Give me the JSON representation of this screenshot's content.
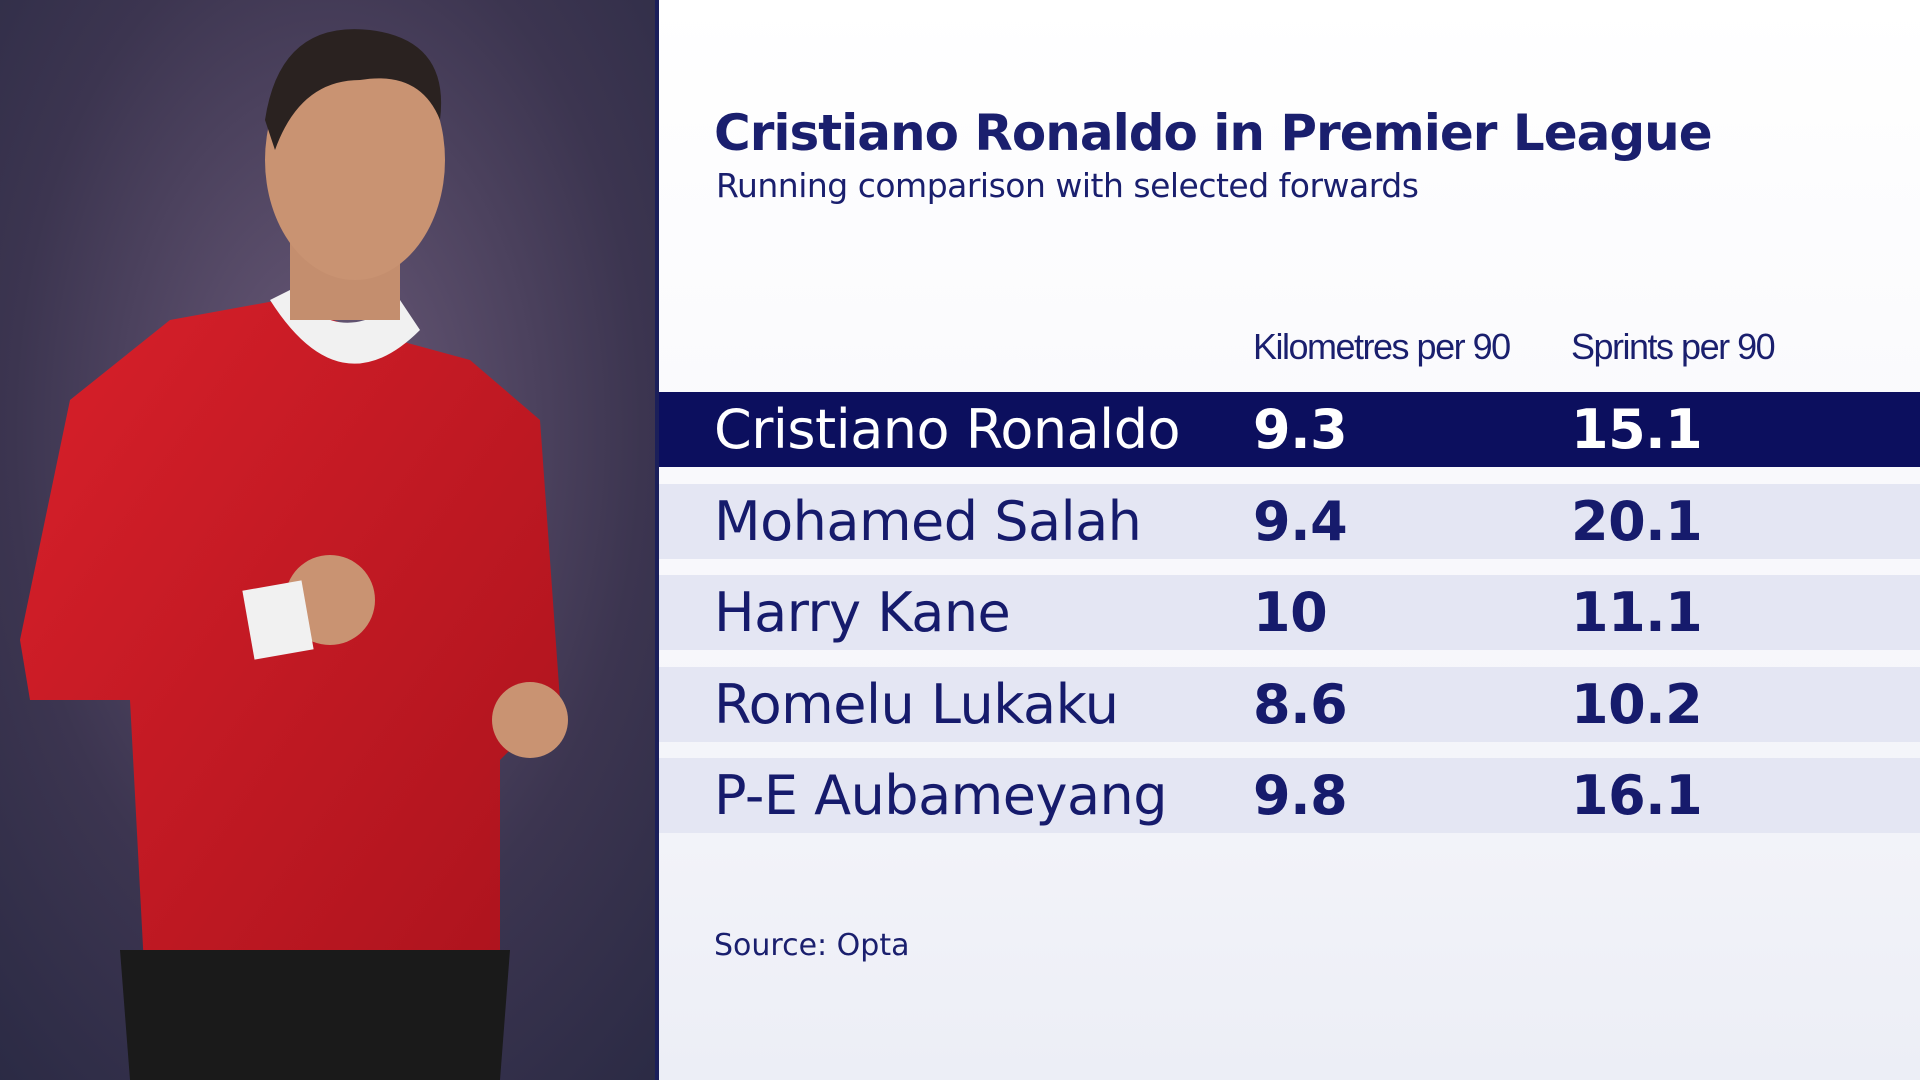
{
  "title": "Cristiano Ronaldo in Premier League",
  "subtitle": "Running comparison with selected forwards",
  "table": {
    "columns": [
      "Kilometres per 90",
      "Sprints per 90"
    ],
    "rows": [
      {
        "name": "Cristiano Ronaldo",
        "values": [
          9.3,
          15.1
        ]
      },
      {
        "name": "Mohamed Salah",
        "values": [
          9.4,
          20.1
        ]
      },
      {
        "name": "Harry Kane",
        "values": [
          10,
          11.1
        ]
      },
      {
        "name": "Romelu Lukaku",
        "values": [
          8.6,
          10.2
        ]
      },
      {
        "name": "P-E Aubameyang",
        "values": [
          9.8,
          16.1
        ]
      }
    ]
  },
  "source": "Source: Opta"
}
